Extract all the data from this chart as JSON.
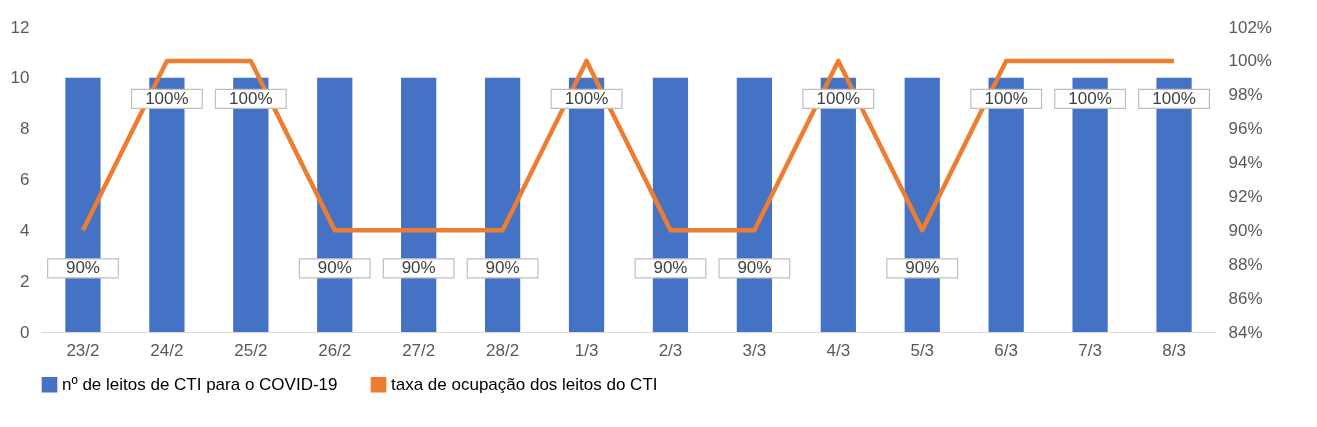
{
  "chart_data": {
    "type": "bar",
    "categories": [
      "23/2",
      "24/2",
      "25/2",
      "26/2",
      "27/2",
      "28/2",
      "1/3",
      "2/3",
      "3/3",
      "4/3",
      "5/3",
      "6/3",
      "7/3",
      "8/3"
    ],
    "ylim": [
      0,
      12
    ],
    "yticks": [
      0,
      2,
      4,
      6,
      8,
      10,
      12
    ],
    "y2lim": [
      84,
      102
    ],
    "y2ticks": [
      {
        "value": 84,
        "label": "84%"
      },
      {
        "value": 86,
        "label": "86%"
      },
      {
        "value": 88,
        "label": "88%"
      },
      {
        "value": 90,
        "label": "90%"
      },
      {
        "value": 92,
        "label": "92%"
      },
      {
        "value": 94,
        "label": "94%"
      },
      {
        "value": 96,
        "label": "96%"
      },
      {
        "value": 98,
        "label": "98%"
      },
      {
        "value": 100,
        "label": "100%"
      },
      {
        "value": 102,
        "label": "102%"
      }
    ],
    "grid": false,
    "legend": "bottom",
    "series": [
      {
        "name": "nº de leitos de CTI para o COVID-19",
        "color": "#4472c4",
        "values": [
          10,
          10,
          10,
          10,
          10,
          10,
          10,
          10,
          10,
          10,
          10,
          10,
          10,
          10
        ]
      },
      {
        "name": "taxa de ocupação dos leitos do CTI",
        "type": "line",
        "axis": "y2",
        "color": "#ed7d31",
        "marker": "none",
        "values": [
          90,
          100,
          100,
          90,
          90,
          90,
          100,
          90,
          90,
          100,
          90,
          100,
          100,
          100
        ],
        "value_labels": [
          "90%",
          "100%",
          "100%",
          "90%",
          "90%",
          "90%",
          "100%",
          "90%",
          "90%",
          "100%",
          "90%",
          "100%",
          "100%",
          "100%"
        ]
      }
    ]
  }
}
